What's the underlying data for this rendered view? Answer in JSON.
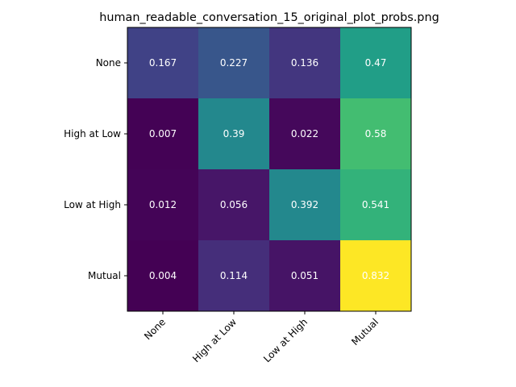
{
  "chart_data": {
    "type": "heatmap",
    "title": "human_readable_conversation_15_original_plot_probs.png",
    "xlabel": "",
    "ylabel": "",
    "x_categories": [
      "None",
      "High at Low",
      "Low at High",
      "Mutual"
    ],
    "y_categories": [
      "None",
      "High at Low",
      "Low at High",
      "Mutual"
    ],
    "values": [
      [
        0.167,
        0.227,
        0.136,
        0.47
      ],
      [
        0.007,
        0.39,
        0.022,
        0.58
      ],
      [
        0.012,
        0.056,
        0.392,
        0.541
      ],
      [
        0.004,
        0.114,
        0.051,
        0.832
      ]
    ],
    "value_labels": [
      [
        "0.167",
        "0.227",
        "0.136",
        "0.47"
      ],
      [
        "0.007",
        "0.39",
        "0.022",
        "0.58"
      ],
      [
        "0.012",
        "0.056",
        "0.392",
        "0.541"
      ],
      [
        "0.004",
        "0.114",
        "0.051",
        "0.832"
      ]
    ],
    "colormap": "viridis",
    "grid": false,
    "legend": "none"
  }
}
